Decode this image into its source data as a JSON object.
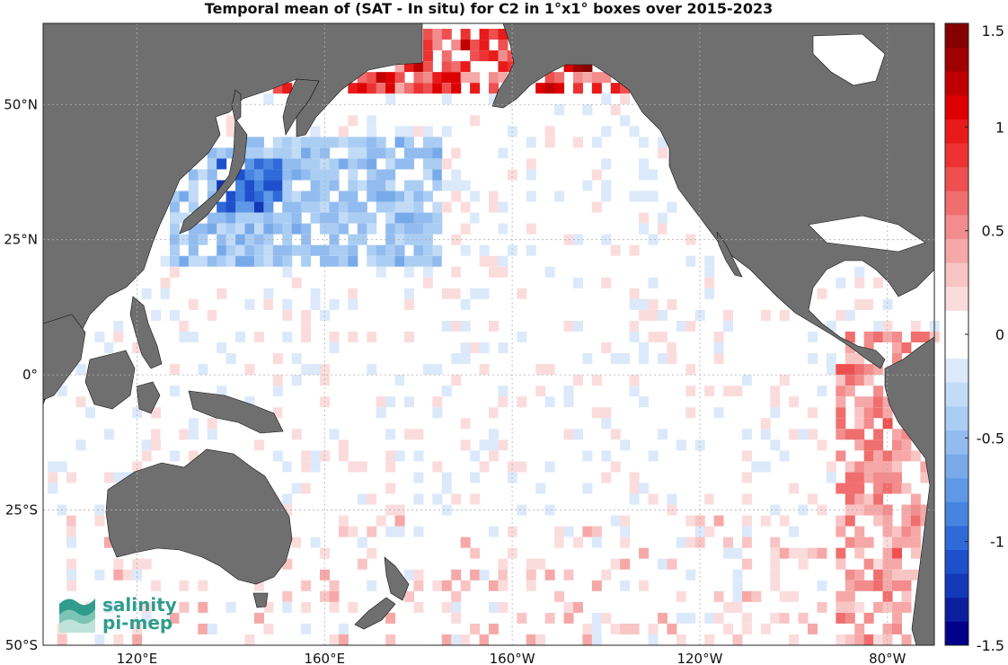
{
  "title": "Temporal mean of (SAT - In situ) for C2 in 1°x1° boxes over 2015-2023",
  "map": {
    "lon_range": [
      100,
      290
    ],
    "lat_range": [
      -50,
      65
    ],
    "lat_ticks": [
      {
        "value": 50,
        "label": "50°N"
      },
      {
        "value": 25,
        "label": "25°N"
      },
      {
        "value": 0,
        "label": "0°"
      },
      {
        "value": -25,
        "label": "25°S"
      },
      {
        "value": -50,
        "label": "50°S"
      }
    ],
    "lon_ticks": [
      {
        "value": 120,
        "label": "120°E"
      },
      {
        "value": 160,
        "label": "160°E"
      },
      {
        "value": 200,
        "label": "160°W"
      },
      {
        "value": 240,
        "label": "120°W"
      },
      {
        "value": 280,
        "label": "80°W"
      }
    ],
    "colors": {
      "land": "#6f6f6f",
      "ocean": "#ffffff",
      "grid": "#b0b0b0",
      "coast": "#000000"
    }
  },
  "colorbar": {
    "range": [
      -1.5,
      1.5
    ],
    "ticks": [
      {
        "value": 1.5,
        "label": "1.5"
      },
      {
        "value": 1,
        "label": "1"
      },
      {
        "value": 0.5,
        "label": "0.5"
      },
      {
        "value": 0,
        "label": "0"
      },
      {
        "value": -0.5,
        "label": "-0.5"
      },
      {
        "value": -1,
        "label": "-1"
      },
      {
        "value": -1.5,
        "label": "-1.5"
      }
    ],
    "colors": [
      "#00008b",
      "#0a1e9e",
      "#1338b8",
      "#1e50cc",
      "#2f6ad8",
      "#4684e0",
      "#5e98e6",
      "#78aaea",
      "#92bcef",
      "#aacdf3",
      "#c2dcf7",
      "#dbe9fa",
      "#ffffff",
      "#ffffff",
      "#fbdcdc",
      "#f9c4c4",
      "#f6a8a8",
      "#f38c8c",
      "#f06e6e",
      "#ee5050",
      "#ec3232",
      "#e81a1a",
      "#dd0000",
      "#c00000",
      "#a00000",
      "#850000"
    ]
  },
  "logo": {
    "line1": "salinity",
    "line2": "pi-mep"
  }
}
